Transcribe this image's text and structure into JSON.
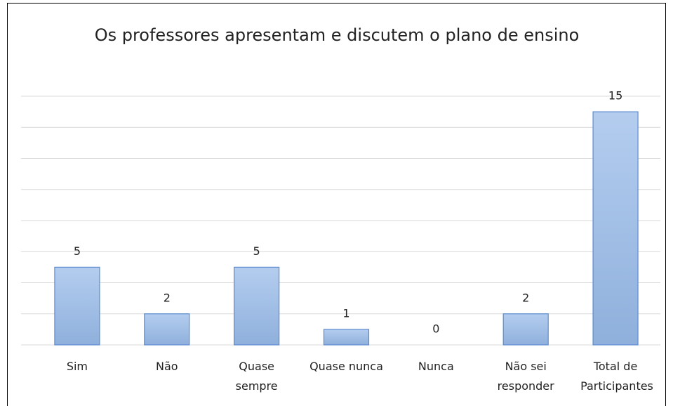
{
  "chart_data": {
    "type": "bar",
    "title": "Os professores apresentam e discutem o plano de ensino",
    "categories": [
      "Sim",
      "Não",
      "Quase sempre",
      "Quase nunca",
      "Nunca",
      "Não sei responder",
      "Total de Participantes"
    ],
    "values": [
      5,
      2,
      5,
      1,
      0,
      2,
      15
    ],
    "color": "#a3bfe6",
    "ylim": [
      0,
      16
    ],
    "yticks": [
      0,
      2,
      4,
      6,
      8,
      10,
      12,
      14,
      16
    ],
    "grid": true
  }
}
